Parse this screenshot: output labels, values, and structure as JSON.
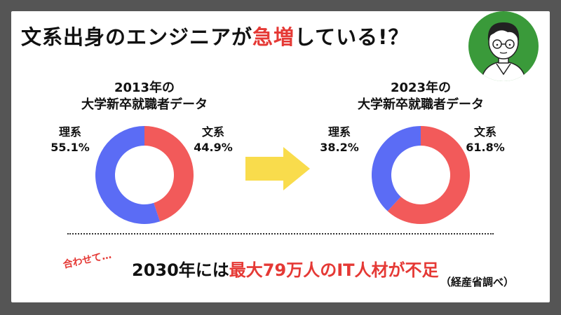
{
  "headline": {
    "part1": "文系出身のエンジニアが",
    "highlight": "急増",
    "part2": "している!？"
  },
  "colors": {
    "riko": "#5b6cf5",
    "bunkei": "#f25a5a",
    "accent": "#e53935",
    "arrow": "#f9dc4c",
    "avatar_bg": "#3a9a3a"
  },
  "icons": {
    "avatar": "person-with-glasses-icon",
    "arrow": "right-arrow-icon"
  },
  "chart_data": [
    {
      "type": "pie",
      "title_line1": "2013年の",
      "title_line2": "大学新卒就職者データ",
      "slices": [
        {
          "name": "理系",
          "value": 55.1,
          "label": "55.1%"
        },
        {
          "name": "文系",
          "value": 44.9,
          "label": "44.9%"
        }
      ]
    },
    {
      "type": "pie",
      "title_line1": "2023年の",
      "title_line2": "大学新卒就職者データ",
      "slices": [
        {
          "name": "理系",
          "value": 38.2,
          "label": "38.2%"
        },
        {
          "name": "文系",
          "value": 61.8,
          "label": "61.8%"
        }
      ]
    }
  ],
  "footer": {
    "aside": "合わせて…",
    "part1": "2030年には",
    "highlight": "最大79万人のIT人材が不足",
    "source": "（経産省調べ）"
  }
}
